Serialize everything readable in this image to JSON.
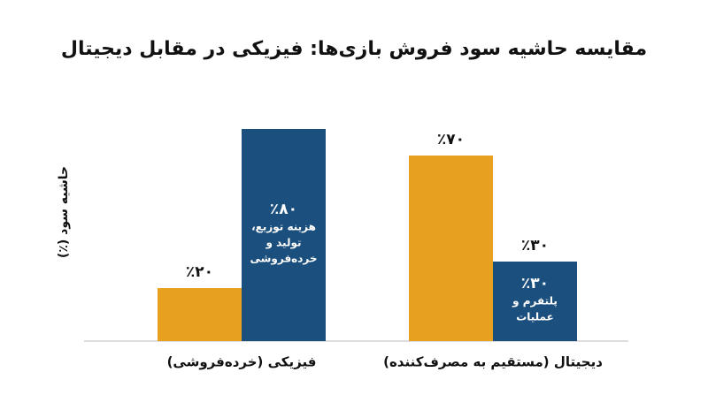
{
  "chart_data": {
    "type": "bar",
    "title": "مقایسه حاشیه سود فروش بازی‌ها: فیزیکی در مقابل دیجیتال",
    "y_label": "حاشیه سود (٪)",
    "categories": [
      "فیزیکی (خرده‌فروشی)",
      "دیجیتال (مستقیم به مصرف‌کننده)"
    ],
    "series": [
      {
        "color": "#E8A020",
        "values": [
          20,
          70
        ],
        "value_labels": [
          "٪۲۰",
          "٪۷۰"
        ]
      },
      {
        "color": "#1B4F7E",
        "values": [
          80,
          30
        ],
        "value_labels": [
          "٪۸۰",
          "٪۳۰"
        ],
        "notes": [
          [
            "هزینه توزیع،",
            "تولید و",
            "خرده‌فروشی"
          ],
          [
            "پلتفرم و",
            "عملیات"
          ]
        ]
      }
    ],
    "ylim": [
      0,
      85
    ]
  }
}
